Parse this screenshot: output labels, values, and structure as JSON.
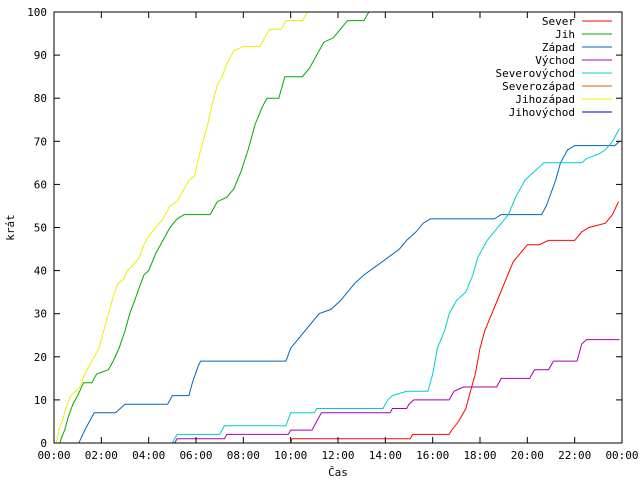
{
  "chart_data": {
    "type": "line",
    "title": "",
    "xlabel": "Čas",
    "ylabel": "krát",
    "xlim": [
      0,
      24
    ],
    "ylim": [
      0,
      100
    ],
    "xticks": [
      {
        "value": 0,
        "label": "00:00"
      },
      {
        "value": 2,
        "label": "02:00"
      },
      {
        "value": 4,
        "label": "04:00"
      },
      {
        "value": 6,
        "label": "06:00"
      },
      {
        "value": 8,
        "label": "08:00"
      },
      {
        "value": 10,
        "label": "10:00"
      },
      {
        "value": 12,
        "label": "12:00"
      },
      {
        "value": 14,
        "label": "14:00"
      },
      {
        "value": 16,
        "label": "16:00"
      },
      {
        "value": 18,
        "label": "18:00"
      },
      {
        "value": 20,
        "label": "20:00"
      },
      {
        "value": 22,
        "label": "22:00"
      },
      {
        "value": 24,
        "label": "00:00"
      }
    ],
    "yticks": [
      0,
      10,
      20,
      30,
      40,
      50,
      60,
      70,
      80,
      90,
      100
    ],
    "grid": false,
    "legend_position": "top-right",
    "series": [
      {
        "name": "Sever",
        "color": "#ff0000",
        "points": [
          [
            10,
            0
          ],
          [
            10.05,
            1
          ],
          [
            15.05,
            1
          ],
          [
            15.15,
            2
          ],
          [
            16.7,
            2
          ],
          [
            16.8,
            3
          ],
          [
            17.1,
            5
          ],
          [
            17.4,
            8
          ],
          [
            17.6,
            12
          ],
          [
            17.8,
            16
          ],
          [
            18,
            22
          ],
          [
            18.2,
            26
          ],
          [
            18.5,
            30
          ],
          [
            18.8,
            34
          ],
          [
            19.1,
            38
          ],
          [
            19.4,
            42
          ],
          [
            19.7,
            44
          ],
          [
            20,
            46
          ],
          [
            20.5,
            46
          ],
          [
            20.9,
            47
          ],
          [
            22,
            47
          ],
          [
            22.3,
            49
          ],
          [
            22.6,
            50
          ],
          [
            23.3,
            51
          ],
          [
            23.6,
            53
          ],
          [
            23.85,
            56
          ]
        ]
      },
      {
        "name": "Jih",
        "color": "#00aa00",
        "points": [
          [
            0.25,
            0
          ],
          [
            0.3,
            1
          ],
          [
            0.45,
            3
          ],
          [
            0.6,
            6
          ],
          [
            0.8,
            9
          ],
          [
            1,
            11
          ],
          [
            1.25,
            14
          ],
          [
            1.6,
            14
          ],
          [
            1.8,
            16
          ],
          [
            2.3,
            17
          ],
          [
            2.5,
            19
          ],
          [
            2.75,
            22
          ],
          [
            3,
            26
          ],
          [
            3.2,
            30
          ],
          [
            3.4,
            33
          ],
          [
            3.6,
            36
          ],
          [
            3.8,
            39
          ],
          [
            4,
            40
          ],
          [
            4.3,
            44
          ],
          [
            4.6,
            47
          ],
          [
            4.9,
            50
          ],
          [
            5.2,
            52
          ],
          [
            5.5,
            53
          ],
          [
            6.6,
            53
          ],
          [
            6.9,
            56
          ],
          [
            7.3,
            57
          ],
          [
            7.6,
            59
          ],
          [
            7.9,
            63
          ],
          [
            8.2,
            68
          ],
          [
            8.5,
            74
          ],
          [
            8.8,
            78
          ],
          [
            9,
            80
          ],
          [
            9.5,
            80
          ],
          [
            9.75,
            85
          ],
          [
            10.5,
            85
          ],
          [
            10.8,
            87
          ],
          [
            11.1,
            90
          ],
          [
            11.4,
            93
          ],
          [
            11.8,
            94
          ],
          [
            12.1,
            96
          ],
          [
            12.4,
            98
          ],
          [
            13.1,
            98
          ],
          [
            13.3,
            100
          ]
        ]
      },
      {
        "name": "Západ",
        "color": "#0066bb",
        "points": [
          [
            1.05,
            0
          ],
          [
            1.3,
            3
          ],
          [
            1.5,
            5
          ],
          [
            1.7,
            7
          ],
          [
            2.6,
            7
          ],
          [
            2.8,
            8
          ],
          [
            3,
            9
          ],
          [
            4.8,
            9
          ],
          [
            5,
            11
          ],
          [
            5.7,
            11
          ],
          [
            5.85,
            14
          ],
          [
            6.1,
            18
          ],
          [
            6.2,
            19
          ],
          [
            9.8,
            19
          ],
          [
            10,
            22
          ],
          [
            10.3,
            24
          ],
          [
            10.6,
            26
          ],
          [
            10.9,
            28
          ],
          [
            11.2,
            30
          ],
          [
            11.7,
            31
          ],
          [
            12.1,
            33
          ],
          [
            12.4,
            35
          ],
          [
            12.7,
            37
          ],
          [
            13.1,
            39
          ],
          [
            13.6,
            41
          ],
          [
            14.1,
            43
          ],
          [
            14.6,
            45
          ],
          [
            14.9,
            47
          ],
          [
            15.3,
            49
          ],
          [
            15.6,
            51
          ],
          [
            15.9,
            52
          ],
          [
            18.6,
            52
          ],
          [
            18.9,
            53
          ],
          [
            20.6,
            53
          ],
          [
            20.8,
            55
          ],
          [
            21,
            58
          ],
          [
            21.2,
            61
          ],
          [
            21.4,
            65
          ],
          [
            21.7,
            68
          ],
          [
            22,
            69
          ],
          [
            23.7,
            69
          ],
          [
            23.9,
            70
          ]
        ]
      },
      {
        "name": "Východ",
        "color": "#aa00aa",
        "points": [
          [
            5.1,
            0
          ],
          [
            5.2,
            1
          ],
          [
            7.2,
            1
          ],
          [
            7.3,
            2
          ],
          [
            9.9,
            2
          ],
          [
            10,
            3
          ],
          [
            10.9,
            3
          ],
          [
            11.1,
            5
          ],
          [
            11.3,
            7
          ],
          [
            14.2,
            7
          ],
          [
            14.3,
            8
          ],
          [
            14.9,
            8
          ],
          [
            15,
            9
          ],
          [
            15.2,
            10
          ],
          [
            16.7,
            10
          ],
          [
            16.9,
            12
          ],
          [
            17.3,
            13
          ],
          [
            18.7,
            13
          ],
          [
            18.9,
            15
          ],
          [
            20.1,
            15
          ],
          [
            20.3,
            17
          ],
          [
            20.9,
            17
          ],
          [
            21.1,
            19
          ],
          [
            22.1,
            19
          ],
          [
            22.3,
            23
          ],
          [
            22.5,
            24
          ],
          [
            23.9,
            24
          ]
        ]
      },
      {
        "name": "Severovýchod",
        "color": "#00cccc",
        "points": [
          [
            5,
            0
          ],
          [
            5.2,
            2
          ],
          [
            7,
            2
          ],
          [
            7.2,
            4
          ],
          [
            9.8,
            4
          ],
          [
            10,
            7
          ],
          [
            11,
            7
          ],
          [
            11.1,
            8
          ],
          [
            13.9,
            8
          ],
          [
            14.1,
            10
          ],
          [
            14.3,
            11
          ],
          [
            14.9,
            12
          ],
          [
            15.8,
            12
          ],
          [
            16,
            16
          ],
          [
            16.2,
            22
          ],
          [
            16.5,
            26
          ],
          [
            16.7,
            30
          ],
          [
            17,
            33
          ],
          [
            17.4,
            35
          ],
          [
            17.7,
            39
          ],
          [
            17.9,
            43
          ],
          [
            18.1,
            45
          ],
          [
            18.3,
            47
          ],
          [
            18.6,
            49
          ],
          [
            18.9,
            51
          ],
          [
            19.2,
            53
          ],
          [
            19.5,
            57
          ],
          [
            19.9,
            61
          ],
          [
            20.3,
            63
          ],
          [
            20.7,
            65
          ],
          [
            22.3,
            65
          ],
          [
            22.5,
            66
          ],
          [
            23,
            67
          ],
          [
            23.3,
            68
          ],
          [
            23.6,
            70
          ],
          [
            23.9,
            73
          ]
        ]
      },
      {
        "name": "Severozápad",
        "color": "#cc6600",
        "points": []
      },
      {
        "name": "Jihozápad",
        "color": "#eeee00",
        "points": [
          [
            0.1,
            0
          ],
          [
            0.2,
            3
          ],
          [
            0.35,
            5
          ],
          [
            0.5,
            8
          ],
          [
            0.7,
            11
          ],
          [
            0.9,
            12
          ],
          [
            1.1,
            13
          ],
          [
            1.3,
            16
          ],
          [
            1.5,
            18
          ],
          [
            1.7,
            20
          ],
          [
            1.9,
            22
          ],
          [
            2.1,
            26
          ],
          [
            2.3,
            30
          ],
          [
            2.5,
            34
          ],
          [
            2.7,
            37
          ],
          [
            2.95,
            38
          ],
          [
            3.1,
            40
          ],
          [
            3.3,
            41
          ],
          [
            3.6,
            43
          ],
          [
            3.8,
            46
          ],
          [
            4,
            48
          ],
          [
            4.3,
            50
          ],
          [
            4.6,
            52
          ],
          [
            4.9,
            55
          ],
          [
            5.2,
            56
          ],
          [
            5.5,
            59
          ],
          [
            5.7,
            61
          ],
          [
            5.95,
            62
          ],
          [
            6.1,
            66
          ],
          [
            6.3,
            70
          ],
          [
            6.5,
            74
          ],
          [
            6.7,
            79
          ],
          [
            6.9,
            83
          ],
          [
            7.1,
            85
          ],
          [
            7.3,
            88
          ],
          [
            7.6,
            91
          ],
          [
            8,
            92
          ],
          [
            8.7,
            92
          ],
          [
            8.9,
            94
          ],
          [
            9.1,
            96
          ],
          [
            9.6,
            96
          ],
          [
            9.8,
            98
          ],
          [
            10.5,
            98
          ],
          [
            10.7,
            100
          ]
        ]
      },
      {
        "name": "Jihovýchod",
        "color": "#0000aa",
        "points": []
      }
    ]
  }
}
